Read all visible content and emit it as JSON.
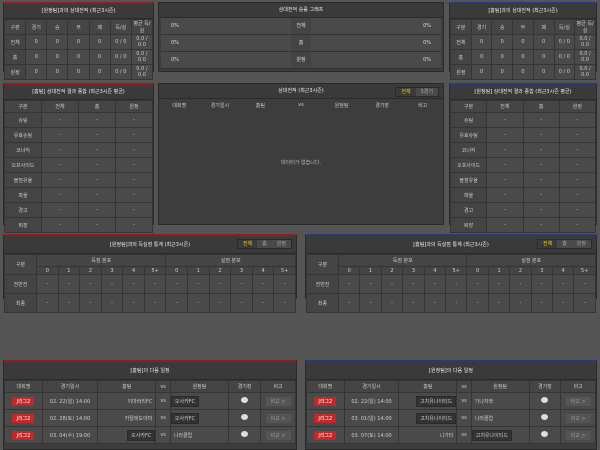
{
  "h2h_left": {
    "title": "[원정팀]과의 상대전적 (최근3시즌)",
    "headers": [
      "구분",
      "경기",
      "승",
      "무",
      "패",
      "득/실",
      "평균 득/실"
    ],
    "rows": [
      [
        "전체",
        "0",
        "0",
        "0",
        "0",
        "0 / 0",
        "0.0 / 0.0"
      ],
      [
        "홈",
        "0",
        "0",
        "0",
        "0",
        "0 / 0",
        "0.0 / 0.0"
      ],
      [
        "원정",
        "0",
        "0",
        "0",
        "0",
        "0 / 0",
        "0.0 / 0.0"
      ]
    ]
  },
  "graph": {
    "title": "상대전적 승률 그래프",
    "rows": [
      {
        "left": "0%",
        "label": "전체",
        "right": "0%"
      },
      {
        "left": "0%",
        "label": "홈",
        "right": "0%"
      },
      {
        "left": "0%",
        "label": "원정",
        "right": "0%"
      }
    ]
  },
  "h2h_right": {
    "title": "[홈팀]과의 상대전적 (최근3시즌)",
    "headers": [
      "구분",
      "경기",
      "승",
      "무",
      "패",
      "득/실",
      "평균 득/실"
    ],
    "rows": [
      [
        "전체",
        "0",
        "0",
        "0",
        "0",
        "0 / 0",
        "0.0 / 0.0"
      ],
      [
        "홈",
        "0",
        "0",
        "0",
        "0",
        "0 / 0",
        "0.0 / 0.0"
      ],
      [
        "원정",
        "0",
        "0",
        "0",
        "0",
        "0 / 0",
        "0.0 / 0.0"
      ]
    ]
  },
  "summary_left": {
    "title": "[홈팀] 상대전적 결과 종합 (최근3시즌 평균)",
    "headers": [
      "구분",
      "전체",
      "홈",
      "원정"
    ],
    "rows": [
      [
        "슈팅",
        "-",
        "-",
        "-"
      ],
      [
        "유효슈팅",
        "-",
        "-",
        "-"
      ],
      [
        "코너킥",
        "-",
        "-",
        "-"
      ],
      [
        "오프사이드",
        "-",
        "-",
        "-"
      ],
      [
        "볼점유율",
        "-",
        "-",
        "-"
      ],
      [
        "파울",
        "-",
        "-",
        "-"
      ],
      [
        "경고",
        "-",
        "-",
        "-"
      ],
      [
        "퇴장",
        "-",
        "-",
        "-"
      ]
    ]
  },
  "recent": {
    "title": "상대전적 (최근3시즌)",
    "toggle": [
      "전체",
      "5경기"
    ],
    "headers": [
      "대회명",
      "경기일시",
      "홈팀",
      "vs",
      "원정팀",
      "경기장",
      "비고"
    ],
    "empty": "데이터가 없습니다."
  },
  "summary_right": {
    "title": "[원정팀] 상대전적 결과 종합 (최근3시즌 평균)",
    "headers": [
      "구분",
      "전체",
      "홈",
      "원정"
    ],
    "rows": [
      [
        "슈팅",
        "-",
        "-",
        "-"
      ],
      [
        "유효슈팅",
        "-",
        "-",
        "-"
      ],
      [
        "코너킥",
        "-",
        "-",
        "-"
      ],
      [
        "오프사이드",
        "-",
        "-",
        "-"
      ],
      [
        "볼점유율",
        "-",
        "-",
        "-"
      ],
      [
        "파울",
        "-",
        "-",
        "-"
      ],
      [
        "경고",
        "-",
        "-",
        "-"
      ],
      [
        "퇴장",
        "-",
        "-",
        "-"
      ]
    ]
  },
  "goals_left": {
    "title": "[원정팀]과의 득실점 통계 (최근3시즌)",
    "toggle": [
      "전체",
      "홈",
      "원정"
    ],
    "col": "구분",
    "g1": "득점 분포",
    "g2": "실점 분포",
    "buckets": [
      "0",
      "1",
      "2",
      "3",
      "4",
      "5+"
    ],
    "rows": [
      [
        "전반전",
        "-",
        "-",
        "-",
        "-",
        "-",
        "-",
        "-",
        "-",
        "-",
        "-",
        "-",
        "-"
      ],
      [
        "최종",
        "-",
        "-",
        "-",
        "-",
        "-",
        "-",
        "-",
        "-",
        "-",
        "-",
        "-",
        "-"
      ]
    ]
  },
  "goals_right": {
    "title": "[홈팀]과의 득실점 통계 (최근3시즌)",
    "toggle": [
      "전체",
      "홈",
      "원정"
    ],
    "col": "구분",
    "g1": "득점 분포",
    "g2": "실점 분포",
    "buckets": [
      "0",
      "1",
      "2",
      "3",
      "4",
      "5+"
    ],
    "rows": [
      [
        "전반전",
        "-",
        "-",
        "-",
        "-",
        "-",
        "-",
        "-",
        "-",
        "-",
        "-",
        "-",
        "-"
      ],
      [
        "최종",
        "-",
        "-",
        "-",
        "-",
        "-",
        "-",
        "-",
        "-",
        "-",
        "-",
        "-",
        "-"
      ]
    ]
  },
  "next_left": {
    "title": "[홈팀]의 다음 일정",
    "headers": [
      "대회명",
      "경기일시",
      "홈팀",
      "vs",
      "원정팀",
      "경기장",
      "비고"
    ],
    "rows": [
      {
        "league": "J리그2",
        "date": "02. 22(일) 14:00",
        "home": "이마바리FC",
        "vs": "vs",
        "away": "오사카FC",
        "hl": "away",
        "btn": "비교 >"
      },
      {
        "league": "J리그2",
        "date": "02. 28(토) 14:00",
        "home": "카탈레도야마",
        "vs": "vs",
        "away": "오사카FC",
        "hl": "away",
        "btn": "비교 >"
      },
      {
        "league": "J리그2",
        "date": "03. 04(수) 19:00",
        "home": "오사카FC",
        "vs": "vs",
        "away": "나라클럽",
        "hl": "home",
        "btn": "비교 >"
      }
    ]
  },
  "next_right": {
    "title": "[원정팀]의 다음 일정",
    "headers": [
      "대회명",
      "경기일시",
      "홈팀",
      "vs",
      "원정팀",
      "경기장",
      "비고"
    ],
    "rows": [
      {
        "league": "J리그2",
        "date": "02. 22(일) 14:00",
        "home": "고치유나이티드",
        "vs": "vs",
        "away": "가나자와",
        "hl": "home",
        "btn": "비교 >"
      },
      {
        "league": "J리그2",
        "date": "03. 01(일) 14:00",
        "home": "고치유나이티드",
        "vs": "vs",
        "away": "나라클럽",
        "hl": "home",
        "btn": "비교 >"
      },
      {
        "league": "J리그2",
        "date": "03. 07(토) 14:00",
        "home": "니가타",
        "vs": "vs",
        "away": "고치유나이티드",
        "hl": "away",
        "btn": "비교 >"
      }
    ]
  },
  "colors": {
    "accent_red": "#c0282a",
    "toggle_active": "#f0d000",
    "background": "#555555"
  }
}
